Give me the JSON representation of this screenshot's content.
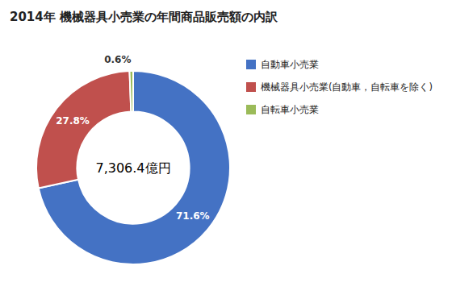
{
  "chart_data": {
    "type": "donut",
    "title": "2014年 機械器具小売業の年間商品販売額の内訳",
    "annotations": [
      "7,306.4億円"
    ],
    "categories": [
      "自動車小売業",
      "機械器具小売業(自動車，自転車を除く)",
      "自転車小売業"
    ],
    "values": [
      71.6,
      27.8,
      0.6
    ],
    "value_labels": [
      "71.6%",
      "27.8%",
      "0.6%"
    ],
    "data_labels": true,
    "colors": [
      "#4472C4",
      "#C0504D",
      "#9BBB59"
    ],
    "legend": "right"
  }
}
